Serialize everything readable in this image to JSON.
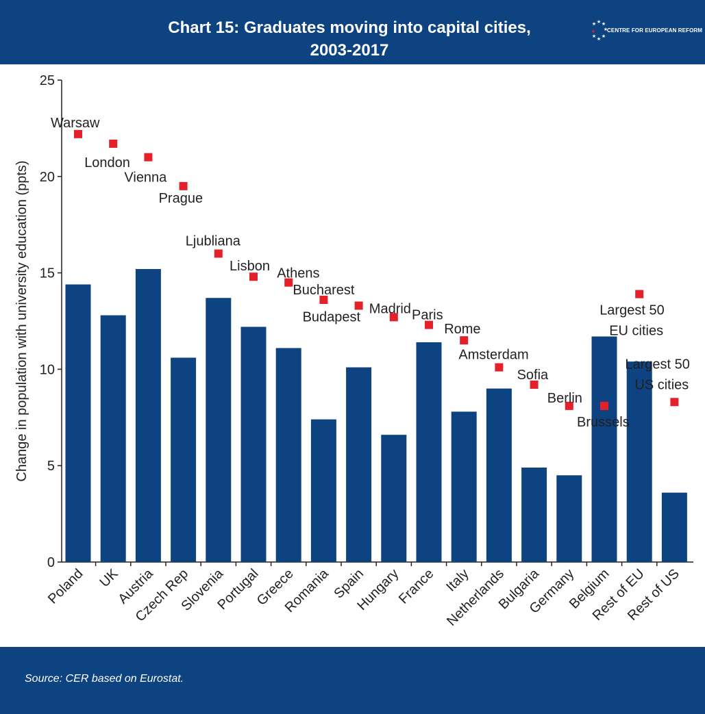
{
  "header": {
    "title_line1": "Chart 15: Graduates moving into capital cities,",
    "title_line2": "2003-2017",
    "logo_text": "CENTRE FOR EUROPEAN REFORM"
  },
  "footer": {
    "source": "Source:  CER based on Eurostat."
  },
  "colors": {
    "header_bg": "#0e4381",
    "bar": "#0e4381",
    "marker": "#e4212b"
  },
  "chart_data": {
    "type": "bar",
    "ylabel": "Change in population with university education (ppts)",
    "ylim": [
      0,
      25
    ],
    "yticks": [
      0,
      5,
      10,
      15,
      20,
      25
    ],
    "categories": [
      "Poland",
      "UK",
      "Austria",
      "Czech Rep",
      "Slovenia",
      "Portugal",
      "Greece",
      "Romania",
      "Spain",
      "Hungary",
      "France",
      "Italy",
      "Netherlands",
      "Bulgaria",
      "Germany",
      "Belgium",
      "Rest of EU",
      "Rest of US"
    ],
    "values": [
      14.4,
      12.8,
      15.2,
      10.6,
      13.7,
      12.2,
      11.1,
      7.4,
      10.1,
      6.6,
      11.4,
      7.8,
      9.0,
      4.9,
      4.5,
      11.7,
      10.4,
      3.6
    ],
    "points": [
      {
        "category": "Poland",
        "name": "Warsaw",
        "value": 22.2
      },
      {
        "category": "UK",
        "name": "London",
        "value": 21.7
      },
      {
        "category": "Austria",
        "name": "Vienna",
        "value": 21.0
      },
      {
        "category": "Czech Rep",
        "name": "Prague",
        "value": 19.5
      },
      {
        "category": "Slovenia",
        "name": "Ljubliana",
        "value": 16.0
      },
      {
        "category": "Portugal",
        "name": "Lisbon",
        "value": 14.8
      },
      {
        "category": "Greece",
        "name": "Athens",
        "value": 14.5
      },
      {
        "category": "Romania",
        "name": "Bucharest",
        "value": 13.6
      },
      {
        "category": "Spain",
        "name": "Budapest",
        "value": 13.3
      },
      {
        "category": "Hungary",
        "name": "Madrid",
        "value": 12.7
      },
      {
        "category": "France",
        "name": "Paris",
        "value": 12.3
      },
      {
        "category": "Italy",
        "name": "Rome",
        "value": 11.5
      },
      {
        "category": "Netherlands",
        "name": "Amsterdam",
        "value": 10.1
      },
      {
        "category": "Bulgaria",
        "name": "Sofia",
        "value": 9.2
      },
      {
        "category": "Germany",
        "name": "Berlin",
        "value": 8.1
      },
      {
        "category": "Belgium",
        "name": "Brussels",
        "value": 8.1
      },
      {
        "category": "Rest of EU",
        "name": "Largest 50 EU cities",
        "value": 13.9
      },
      {
        "category": "Rest of US",
        "name": "Largest 50 US cities",
        "value": 8.3
      }
    ]
  }
}
